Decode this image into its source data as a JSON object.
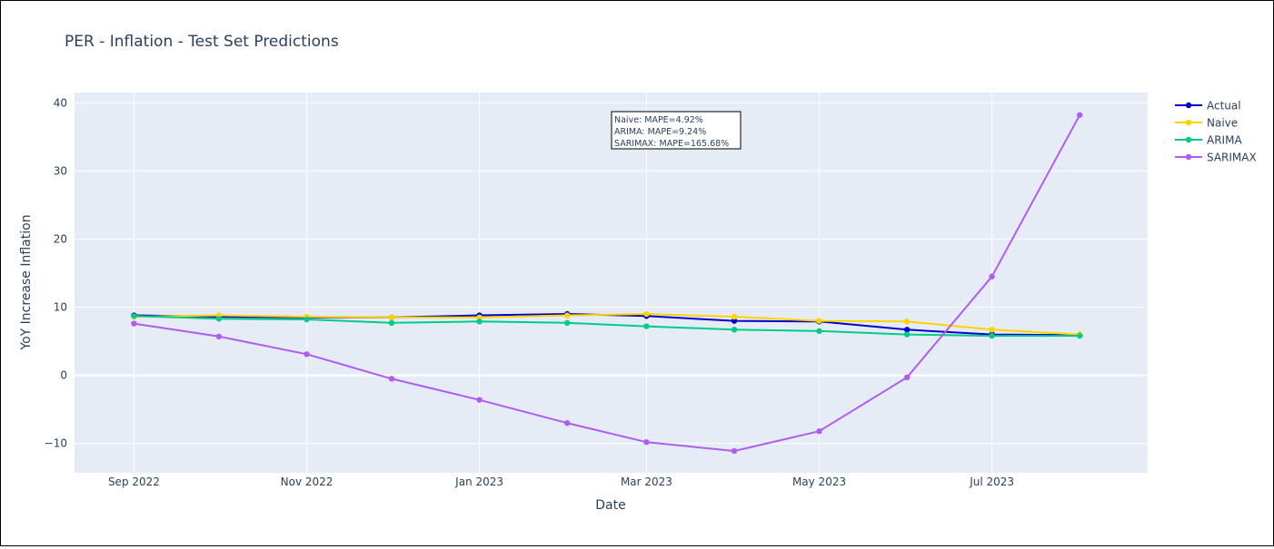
{
  "chart_data": {
    "type": "line",
    "title": "PER - Inflation -  Test Set Predictions",
    "xlabel": "Date",
    "ylabel": "YoY Increase Inflation",
    "x": [
      "2022-09",
      "2022-10",
      "2022-11",
      "2022-12",
      "2023-01",
      "2023-02",
      "2023-03",
      "2023-04",
      "2023-05",
      "2023-06",
      "2023-07",
      "2023-08"
    ],
    "x_ticks": [
      {
        "date": "2022-09",
        "label": "Sep 2022"
      },
      {
        "date": "2022-11",
        "label": "Nov 2022"
      },
      {
        "date": "2023-01",
        "label": "Jan 2023"
      },
      {
        "date": "2023-03",
        "label": "Mar 2023"
      },
      {
        "date": "2023-05",
        "label": "May 2023"
      },
      {
        "date": "2023-07",
        "label": "Jul 2023"
      }
    ],
    "xlim": [
      "2022-08-11",
      "2023-08-25"
    ],
    "y_ticks": [
      -10,
      0,
      10,
      20,
      30,
      40
    ],
    "ylim": [
      -14.3,
      41.5
    ],
    "grid": true,
    "legend_position": "right",
    "series": [
      {
        "name": "Actual",
        "color": "#0000cc",
        "width": 2,
        "values": [
          8.8,
          8.6,
          8.5,
          8.5,
          8.8,
          9.0,
          8.7,
          8.0,
          7.9,
          6.7,
          6.0,
          5.9
        ]
      },
      {
        "name": "Naive",
        "color": "#ffd300",
        "width": 2,
        "values": [
          8.6,
          8.8,
          8.6,
          8.5,
          8.5,
          8.8,
          9.0,
          8.6,
          8.0,
          7.9,
          6.7,
          6.0
        ]
      },
      {
        "name": "ARIMA",
        "color": "#00cc88",
        "width": 2,
        "values": [
          8.7,
          8.3,
          8.2,
          7.7,
          7.9,
          7.7,
          7.2,
          6.7,
          6.5,
          6.0,
          5.8,
          5.8
        ]
      },
      {
        "name": "SARIMAX",
        "color": "#b05cf2",
        "width": 2,
        "values": [
          7.6,
          5.7,
          3.1,
          -0.5,
          -3.6,
          -7.0,
          -9.8,
          -11.1,
          -8.2,
          -0.3,
          14.5,
          38.2
        ]
      }
    ],
    "annotation": [
      "Naive: MAPE=4.92%",
      "ARIMA: MAPE=9.24%",
      "SARIMAX: MAPE=165.68%"
    ]
  }
}
